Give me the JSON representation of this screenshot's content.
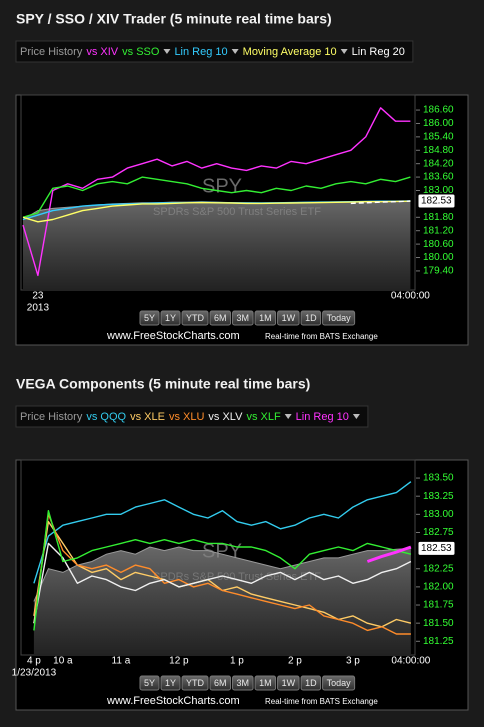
{
  "chart_data": [
    {
      "type": "line",
      "title": "SPY / SSO / XIV Trader (5 minute real time bars)",
      "watermark": "SPY",
      "watermark_subtitle": "SPDRs S&P 500 Trust Series ETF",
      "categories": [
        null,
        "23",
        null,
        null,
        null,
        null,
        null,
        null,
        null,
        null,
        null,
        null,
        null,
        null,
        null,
        null,
        null,
        null,
        null,
        null,
        null,
        null,
        null,
        null,
        null,
        null,
        "04:00:00"
      ],
      "date_label": "2013",
      "ylim": [
        178.77,
        187.05
      ],
      "yticks": [
        {
          "value": 186.6,
          "label": "186.60"
        },
        {
          "value": 186.0,
          "label": "186.00"
        },
        {
          "value": 185.4,
          "label": "185.40"
        },
        {
          "value": 184.8,
          "label": "184.80"
        },
        {
          "value": 184.2,
          "label": "184.20"
        },
        {
          "value": 183.6,
          "label": "183.60"
        },
        {
          "value": 183.0,
          "label": "183.00"
        },
        {
          "value": 181.8,
          "label": "181.80"
        },
        {
          "value": 181.2,
          "label": "181.20"
        },
        {
          "value": 180.6,
          "label": "180.60"
        },
        {
          "value": 180.0,
          "label": "180.00"
        },
        {
          "value": 179.4,
          "label": "179.40"
        }
      ],
      "tick_color": "#33ff33",
      "series": [
        {
          "name": "Price History",
          "color": "#9a9a9a",
          "style": "area",
          "values": [
            181.7,
            182.1,
            182.2,
            182.25,
            182.3,
            182.35,
            182.4,
            182.42,
            182.45,
            182.45,
            182.48,
            182.48,
            182.5,
            182.48,
            182.46,
            182.45,
            182.44,
            182.45,
            182.46,
            182.47,
            182.48,
            182.49,
            182.5,
            182.51,
            182.52,
            182.52,
            182.53
          ]
        },
        {
          "name": "vs XIV",
          "color": "#ff33ff",
          "values": [
            181.45,
            179.2,
            183.0,
            183.3,
            183.1,
            183.5,
            183.6,
            184.0,
            184.2,
            184.4,
            184.1,
            184.3,
            184.0,
            184.2,
            184.0,
            183.9,
            184.1,
            184.0,
            184.3,
            184.2,
            184.4,
            184.6,
            184.8,
            185.4,
            186.7,
            186.1,
            186.1
          ]
        },
        {
          "name": "vs SSO",
          "color": "#33ee33",
          "menu": true,
          "values": [
            181.8,
            182.0,
            183.1,
            183.2,
            183.0,
            183.3,
            183.4,
            183.3,
            183.6,
            183.5,
            183.4,
            183.3,
            183.1,
            183.0,
            182.9,
            183.0,
            182.9,
            183.1,
            183.0,
            183.2,
            183.1,
            183.3,
            183.4,
            183.3,
            183.5,
            183.4,
            183.6
          ]
        },
        {
          "name": "Lin Reg 10",
          "color": "#33ccff",
          "menu": true,
          "values": [
            181.7,
            181.9,
            182.1,
            182.2,
            182.3,
            182.35,
            182.38,
            182.4,
            182.42,
            182.44,
            182.45,
            182.46,
            182.47,
            182.46,
            182.45,
            182.44,
            182.44,
            182.45,
            182.46,
            182.47,
            182.48,
            182.49,
            182.5,
            182.51,
            182.52,
            182.52,
            182.53
          ]
        },
        {
          "name": "Moving Average 10",
          "color": "#ffff66",
          "menu": true,
          "values": [
            181.8,
            181.6,
            181.7,
            181.9,
            182.1,
            182.2,
            182.3,
            182.35,
            182.4,
            182.4,
            182.42,
            182.45,
            182.46,
            182.45,
            182.44,
            182.42,
            182.42,
            182.43,
            182.44,
            182.45,
            182.46,
            182.47,
            182.48,
            182.5,
            182.5,
            182.51,
            182.52
          ]
        },
        {
          "name": "Lin Reg 20",
          "color": "#ffffff",
          "dash": true,
          "values": [
            null,
            null,
            null,
            null,
            null,
            null,
            null,
            null,
            null,
            null,
            null,
            null,
            null,
            null,
            null,
            null,
            null,
            null,
            null,
            null,
            null,
            null,
            182.42,
            182.45,
            182.48,
            182.5,
            182.53
          ]
        }
      ],
      "ranges": [
        "5Y",
        "1Y",
        "YTD",
        "6M",
        "3M",
        "1M",
        "1W",
        "1D",
        "Today"
      ],
      "footer": "www.FreeStockCharts.com",
      "source": "Real-time from BATS Exchange"
    },
    {
      "type": "line",
      "title": "VEGA Components (5 minute real time bars)",
      "watermark": "SPY",
      "watermark_subtitle": "SPDRs S&P 500 Trust Series ETF",
      "categories": [
        "4 p",
        null,
        "10 a",
        null,
        null,
        null,
        "11 a",
        null,
        null,
        null,
        "12 p",
        null,
        null,
        null,
        "1 p",
        null,
        null,
        null,
        "2 p",
        null,
        null,
        null,
        "3 p",
        null,
        null,
        null,
        "04:00:00"
      ],
      "date_label": "1/23/2013",
      "ylim": [
        181.13,
        183.68
      ],
      "yticks": [
        {
          "value": 183.5,
          "label": "183.50"
        },
        183.25,
        {
          "value": 183.0,
          "label": "183.00"
        },
        182.75,
        182.25,
        {
          "value": 182.0,
          "label": "182.00"
        },
        181.75,
        {
          "value": 181.5,
          "label": "181.50"
        },
        181.25
      ],
      "tick_color": "#33ff33",
      "series": [
        {
          "name": "Price History",
          "color": "#9a9a9a",
          "style": "area",
          "values": [
            181.8,
            182.25,
            182.2,
            182.3,
            182.35,
            182.45,
            182.5,
            182.45,
            182.55,
            182.5,
            182.55,
            182.5,
            182.5,
            182.45,
            182.4,
            182.35,
            182.3,
            182.25,
            182.3,
            182.35,
            182.4,
            182.4,
            182.45,
            182.5,
            182.5,
            182.52,
            182.53
          ]
        },
        {
          "name": "vs QQQ",
          "color": "#33ccee",
          "values": [
            182.05,
            182.7,
            182.85,
            182.9,
            182.95,
            183.0,
            183.0,
            183.1,
            183.15,
            183.2,
            183.1,
            183.0,
            182.95,
            183.05,
            182.9,
            182.85,
            182.9,
            182.8,
            182.85,
            182.95,
            183.0,
            182.95,
            183.1,
            183.2,
            183.25,
            183.3,
            183.45
          ]
        },
        {
          "name": "vs XLE",
          "color": "#ffcc66",
          "values": [
            181.6,
            182.9,
            182.6,
            182.3,
            182.2,
            182.25,
            182.1,
            182.2,
            182.15,
            182.1,
            182.0,
            182.05,
            182.1,
            181.95,
            182.0,
            181.9,
            181.85,
            181.8,
            181.75,
            181.7,
            181.65,
            181.55,
            181.6,
            181.5,
            181.45,
            181.55,
            181.5
          ]
        },
        {
          "name": "vs XLU",
          "color": "#ff8c2a",
          "values": [
            181.5,
            183.0,
            182.5,
            182.3,
            182.25,
            182.3,
            182.2,
            182.3,
            182.25,
            182.05,
            182.1,
            182.0,
            182.05,
            181.95,
            181.9,
            181.85,
            181.8,
            181.75,
            181.7,
            181.75,
            181.6,
            181.55,
            181.5,
            181.4,
            181.45,
            181.35,
            181.35
          ]
        },
        {
          "name": "vs XLV",
          "color": "#f0f0f0",
          "values": [
            181.5,
            182.6,
            182.4,
            182.05,
            182.15,
            182.1,
            182.0,
            181.95,
            182.05,
            182.1,
            182.0,
            182.05,
            182.1,
            182.15,
            182.1,
            182.05,
            182.15,
            182.2,
            182.1,
            182.2,
            182.1,
            182.15,
            182.05,
            182.1,
            182.2,
            182.25,
            182.35
          ]
        },
        {
          "name": "vs XLF",
          "color": "#33ee33",
          "menu": true,
          "values": [
            181.4,
            183.05,
            182.35,
            182.4,
            182.5,
            182.55,
            182.6,
            182.65,
            182.6,
            182.65,
            182.6,
            182.65,
            182.6,
            182.6,
            182.55,
            182.55,
            182.5,
            182.4,
            182.25,
            182.45,
            182.5,
            182.55,
            182.5,
            182.6,
            182.55,
            182.5,
            182.45
          ]
        },
        {
          "name": "Lin Reg 10",
          "color": "#ff33ff",
          "menu": true,
          "width": 3,
          "values": [
            null,
            null,
            null,
            null,
            null,
            null,
            null,
            null,
            null,
            null,
            null,
            null,
            null,
            null,
            null,
            null,
            null,
            null,
            null,
            null,
            null,
            null,
            null,
            182.35,
            182.42,
            182.48,
            182.55
          ]
        }
      ],
      "ranges": [
        "5Y",
        "1Y",
        "YTD",
        "6M",
        "3M",
        "1M",
        "1W",
        "1D",
        "Today"
      ],
      "footer": "www.FreeStockCharts.com",
      "source": "Real-time from BATS Exchange"
    }
  ]
}
